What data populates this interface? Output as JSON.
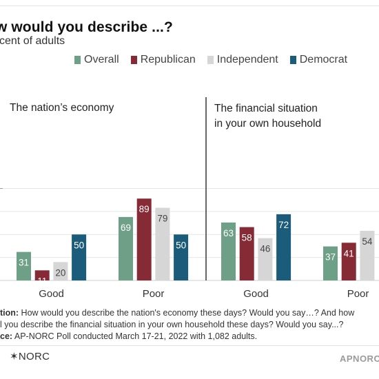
{
  "header": {
    "title": "w would you describe ...?",
    "subtitle": "cent of adults"
  },
  "colors": {
    "overall": "#6e9f87",
    "republican": "#862a35",
    "independent": "#d6d6d6",
    "democrat": "#1b5c7a"
  },
  "legend": [
    {
      "name": "Overall",
      "color": "#6e9f87"
    },
    {
      "name": "Republican",
      "color": "#862a35"
    },
    {
      "name": "Independent",
      "color": "#d6d6d6"
    },
    {
      "name": "Democrat",
      "color": "#1b5c7a"
    }
  ],
  "chart_data": [
    {
      "type": "bar",
      "title": "The nation’s economy",
      "categories": [
        "Good",
        "Poor"
      ],
      "series": [
        {
          "name": "Overall",
          "values": [
            31,
            69
          ]
        },
        {
          "name": "Republican",
          "values": [
            11,
            89
          ]
        },
        {
          "name": "Independent",
          "values": [
            20,
            79
          ]
        },
        {
          "name": "Democrat",
          "values": [
            50,
            50
          ]
        }
      ],
      "ylim": [
        0,
        100
      ],
      "grid": true
    },
    {
      "type": "bar",
      "title": "The financial situation in your own household",
      "title_lines": [
        "The financial situation",
        "in your own household"
      ],
      "categories": [
        "Good",
        "Poor"
      ],
      "series": [
        {
          "name": "Overall",
          "values": [
            63,
            37
          ]
        },
        {
          "name": "Republican",
          "values": [
            58,
            41
          ]
        },
        {
          "name": "Independent",
          "values": [
            46,
            54
          ]
        },
        {
          "name": "Democrat",
          "values": [
            72,
            null
          ]
        }
      ],
      "ylim": [
        0,
        100
      ],
      "grid": true
    }
  ],
  "notes": {
    "question_label": "tion:",
    "question_line1": " How would you describe the nation's economy these days? Would you say…? And how",
    "question_line2": "l you describe the financial situation in your own household these days? Would you say...?",
    "source_label": "ce:",
    "source_text": " AP-NORC Poll conducted March 17-21, 2022 with 1,082 adults."
  },
  "footer": {
    "logo_left": "✶NORC",
    "logo_right": "APNORC"
  }
}
